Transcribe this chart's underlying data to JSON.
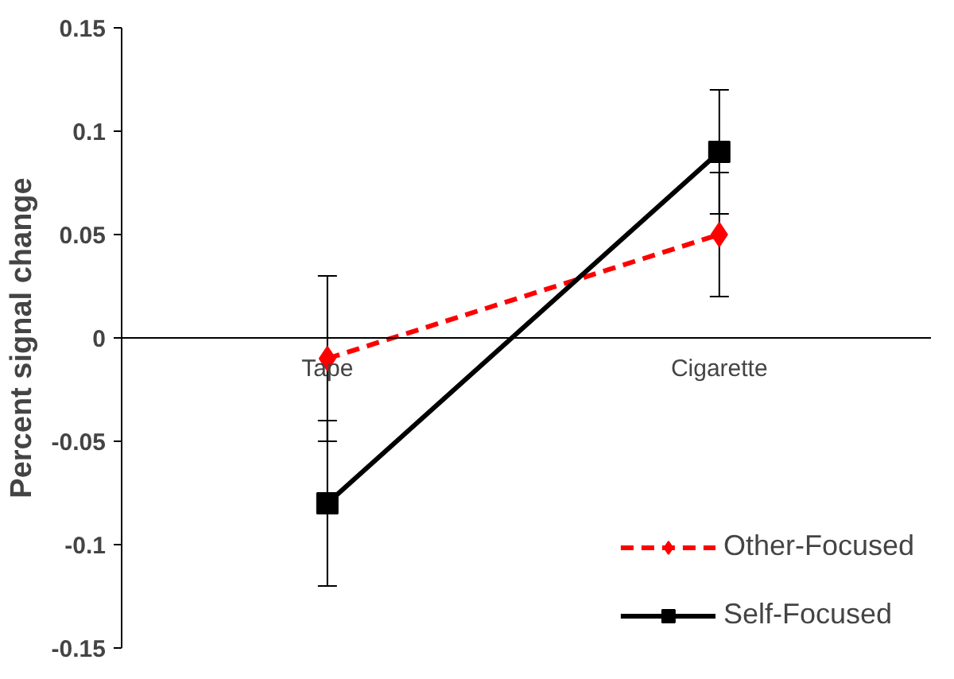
{
  "chart_data": {
    "type": "line",
    "ylabel": "Percent signal change",
    "categories": [
      "Tape",
      "Cigarette"
    ],
    "series": [
      {
        "name": "Other-Focused",
        "color": "#ff0000",
        "values": [
          -0.01,
          0.05
        ],
        "errors": [
          0.04,
          0.03
        ],
        "marker": "diamond",
        "line_style": "dashed"
      },
      {
        "name": "Self-Focused",
        "color": "#000000",
        "values": [
          -0.08,
          0.09
        ],
        "errors": [
          0.04,
          0.03
        ],
        "marker": "square",
        "line_style": "solid"
      }
    ],
    "ylim": [
      -0.15,
      0.15
    ],
    "yticks": [
      {
        "value": -0.15,
        "label": "-0.15"
      },
      {
        "value": -0.1,
        "label": "-0.1"
      },
      {
        "value": -0.05,
        "label": "-0.05"
      },
      0,
      {
        "value": 0.05,
        "label": "0.05"
      },
      {
        "value": 0.1,
        "label": "0.1"
      },
      {
        "value": 0.15,
        "label": "0.15"
      }
    ],
    "grid": false,
    "legend": "bottom right"
  }
}
